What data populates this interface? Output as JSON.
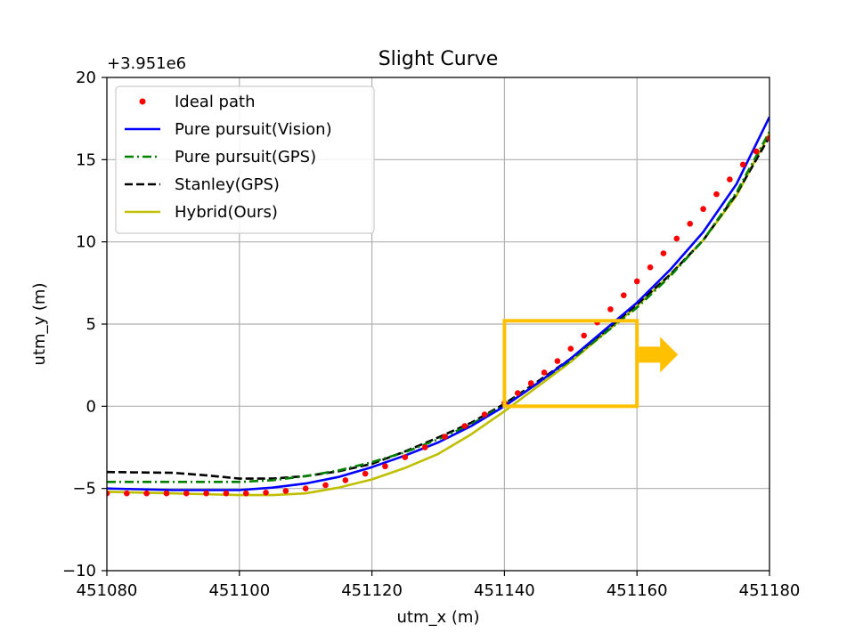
{
  "chart_data": {
    "type": "line",
    "title": "Slight Curve",
    "xlabel": "utm_x (m)",
    "ylabel": "utm_y (m)",
    "y_offset_label": "+3.951e6",
    "xlim": [
      451080,
      451180
    ],
    "ylim": [
      -10,
      20
    ],
    "xticks": [
      451080,
      451100,
      451120,
      451140,
      451160,
      451180
    ],
    "yticks": [
      -10,
      -5,
      0,
      5,
      10,
      15,
      20
    ],
    "grid": true,
    "legend_position": "upper-left",
    "series": [
      {
        "name": "Ideal path",
        "style": "dots",
        "color": "#ff0000",
        "x": [
          451080,
          451083,
          451086,
          451089,
          451092,
          451095,
          451098,
          451101,
          451104,
          451107,
          451110,
          451113,
          451116,
          451119,
          451122,
          451125,
          451128,
          451131,
          451134,
          451137,
          451140,
          451142,
          451144,
          451146,
          451148,
          451150,
          451152,
          451154,
          451156,
          451158,
          451160,
          451162,
          451164,
          451166,
          451168,
          451170,
          451172,
          451174,
          451176,
          451178,
          451180
        ],
        "y": [
          -5.3,
          -5.3,
          -5.3,
          -5.3,
          -5.3,
          -5.3,
          -5.3,
          -5.3,
          -5.25,
          -5.15,
          -5.0,
          -4.8,
          -4.5,
          -4.1,
          -3.65,
          -3.1,
          -2.5,
          -1.85,
          -1.2,
          -0.5,
          0.2,
          0.8,
          1.4,
          2.05,
          2.75,
          3.5,
          4.3,
          5.1,
          5.9,
          6.75,
          7.6,
          8.45,
          9.3,
          10.2,
          11.1,
          12.0,
          12.9,
          13.8,
          14.7,
          15.5,
          16.3
        ]
      },
      {
        "name": "Pure pursuit(Vision)",
        "style": "solid",
        "color": "#0000ff",
        "x": [
          451080,
          451090,
          451100,
          451105,
          451110,
          451115,
          451120,
          451125,
          451130,
          451135,
          451140,
          451145,
          451150,
          451155,
          451160,
          451165,
          451170,
          451175,
          451180
        ],
        "y": [
          -5.0,
          -5.1,
          -5.1,
          -4.95,
          -4.7,
          -4.3,
          -3.7,
          -3.0,
          -2.2,
          -1.2,
          0.0,
          1.4,
          2.9,
          4.6,
          6.3,
          8.3,
          10.6,
          13.5,
          17.6
        ]
      },
      {
        "name": "Pure pursuit(GPS)",
        "style": "dashdot",
        "color": "#008000",
        "x": [
          451080,
          451090,
          451100,
          451105,
          451110,
          451115,
          451120,
          451125,
          451130,
          451135,
          451140,
          451145,
          451150,
          451155,
          451160,
          451165,
          451170,
          451175,
          451180
        ],
        "y": [
          -4.6,
          -4.6,
          -4.6,
          -4.5,
          -4.25,
          -3.9,
          -3.4,
          -2.8,
          -2.0,
          -1.1,
          0.1,
          1.4,
          2.8,
          4.4,
          6.0,
          7.9,
          10.1,
          13.0,
          16.7
        ]
      },
      {
        "name": "Stanley(GPS)",
        "style": "dashed",
        "color": "#000000",
        "x": [
          451080,
          451090,
          451095,
          451100,
          451105,
          451110,
          451115,
          451120,
          451125,
          451130,
          451135,
          451140,
          451145,
          451150,
          451155,
          451160,
          451165,
          451170,
          451175,
          451180
        ],
        "y": [
          -4.0,
          -4.05,
          -4.2,
          -4.4,
          -4.4,
          -4.25,
          -3.95,
          -3.5,
          -2.75,
          -1.9,
          -1.0,
          0.15,
          1.5,
          2.9,
          4.5,
          6.2,
          8.0,
          10.1,
          12.9,
          16.4
        ]
      },
      {
        "name": "Hybrid(Ours)",
        "style": "solid",
        "color": "#bfbf00",
        "x": [
          451080,
          451090,
          451100,
          451105,
          451110,
          451115,
          451120,
          451125,
          451130,
          451135,
          451140,
          451145,
          451150,
          451155,
          451160,
          451165,
          451170,
          451175,
          451180
        ],
        "y": [
          -5.2,
          -5.3,
          -5.4,
          -5.4,
          -5.3,
          -4.95,
          -4.45,
          -3.75,
          -2.9,
          -1.7,
          -0.3,
          1.2,
          2.7,
          4.4,
          6.1,
          8.0,
          10.1,
          12.8,
          16.6
        ]
      }
    ],
    "annotation": {
      "type": "box-with-arrow",
      "color": "#ffc000",
      "x_range": [
        451140,
        451160
      ],
      "y_range": [
        0,
        5.2
      ]
    }
  }
}
